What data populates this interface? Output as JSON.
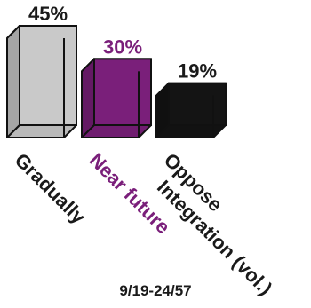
{
  "chart_data": {
    "type": "bar",
    "title": "",
    "xlabel": "",
    "ylabel": "",
    "ylim": [
      0,
      45
    ],
    "categories": [
      "Gradually",
      "Near future",
      "Oppose Integration (vol.)"
    ],
    "category_lines": [
      [
        "Gradually"
      ],
      [
        "Near future"
      ],
      [
        "Oppose",
        "Integration (vol.)"
      ]
    ],
    "values": [
      45,
      30,
      19
    ],
    "data_labels": [
      "45%",
      "30%",
      "19%"
    ],
    "colors": [
      "#c9c9c9",
      "#7a1f7a",
      "#141414"
    ],
    "label_colors": [
      "#1a1a1a",
      "#7a1f7a",
      "#1a1a1a"
    ],
    "footnote": "9/19-24/57"
  }
}
